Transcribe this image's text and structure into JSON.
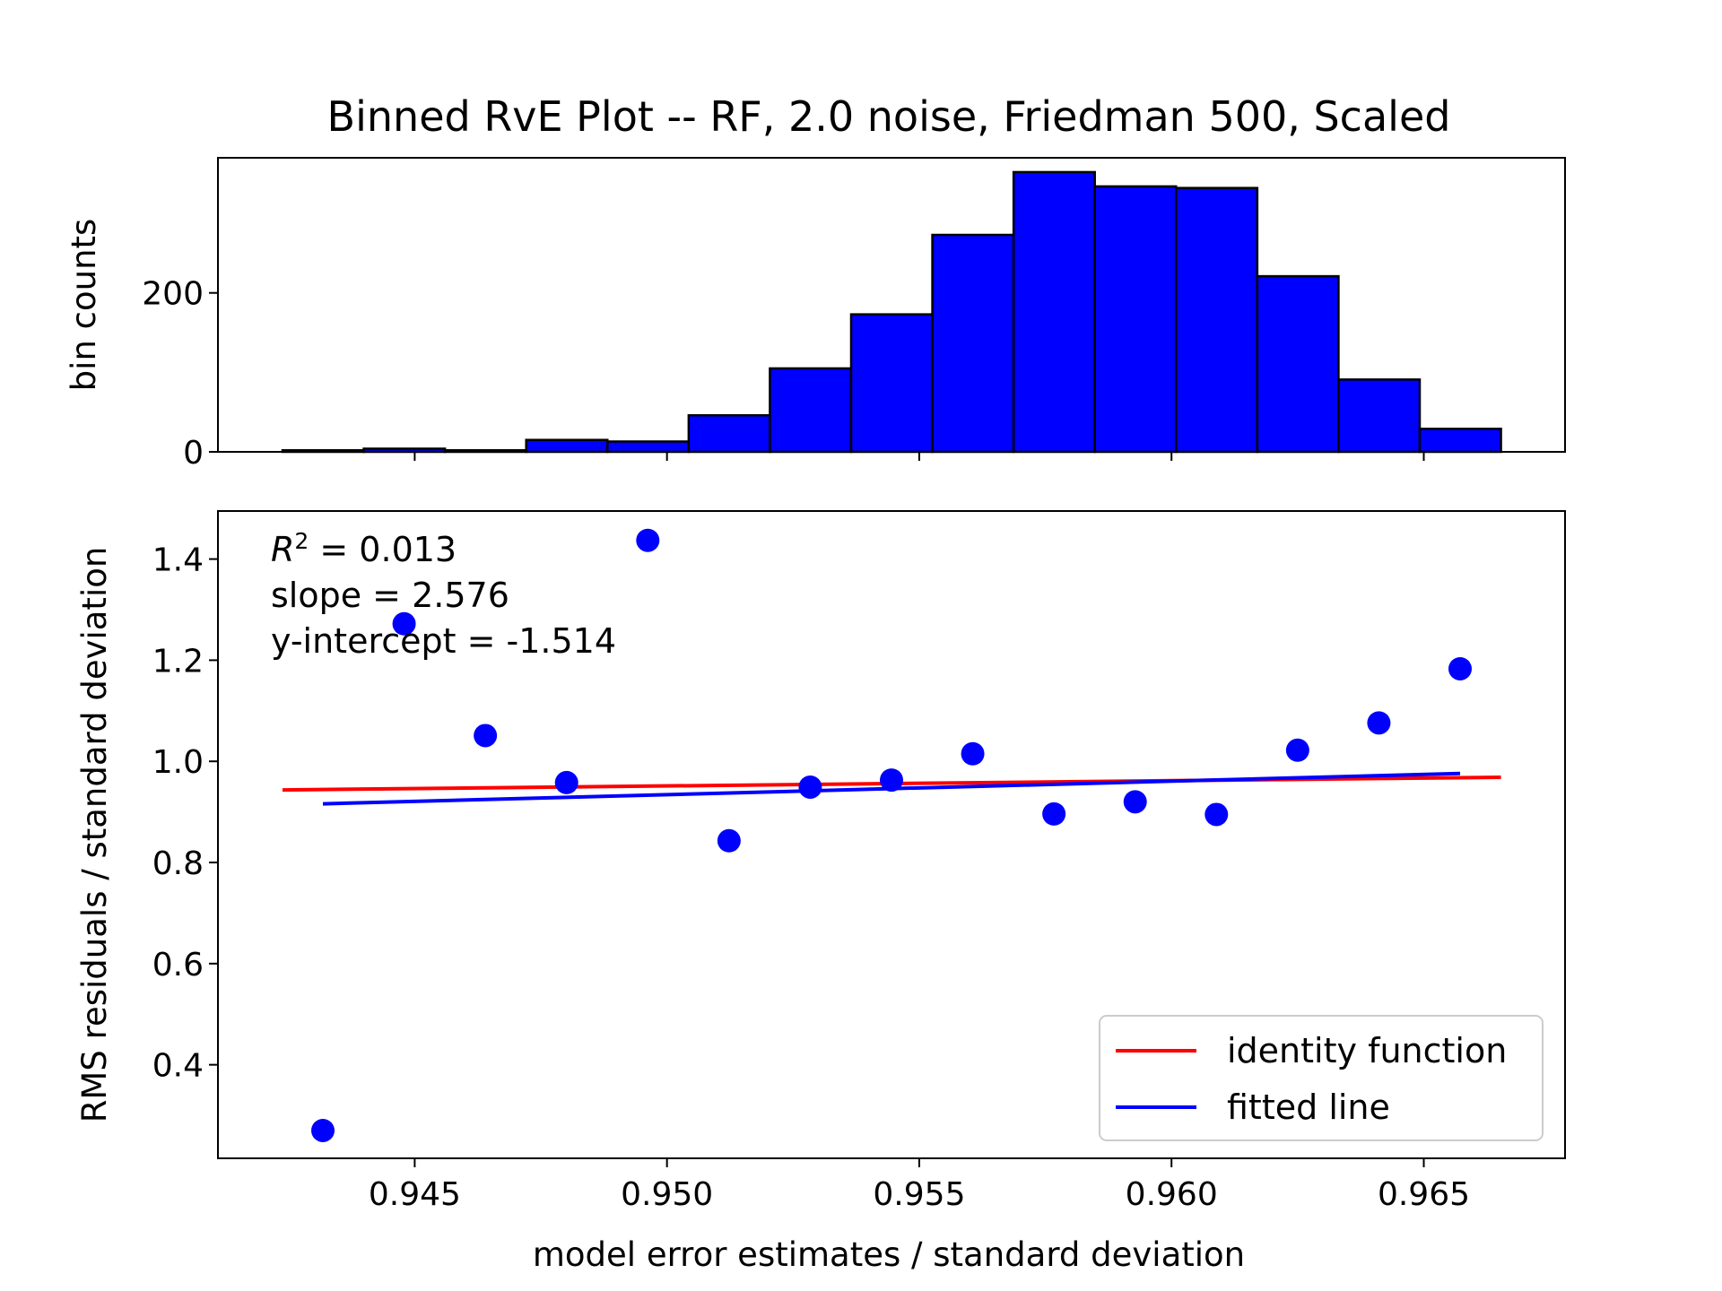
{
  "figure": {
    "title": "Binned RvE Plot -- RF, 2.0 noise, Friedman 500, Scaled"
  },
  "chart_data": [
    {
      "type": "bar",
      "panel": "top",
      "ylabel": "bin counts",
      "xlim": [
        0.9411,
        0.9678
      ],
      "ylim": [
        0,
        370
      ],
      "yticks": [
        0,
        200
      ],
      "bar_color": "#0000ff",
      "edge_color": "#000000",
      "bin_edges": [
        0.94238,
        0.94399,
        0.9456,
        0.94721,
        0.94882,
        0.95043,
        0.95204,
        0.95365,
        0.95526,
        0.95687,
        0.95848,
        0.96009,
        0.9617,
        0.96331,
        0.96492,
        0.96653
      ],
      "values": [
        2,
        4,
        2,
        15,
        13,
        46,
        105,
        173,
        273,
        352,
        334,
        332,
        221,
        91,
        29
      ]
    },
    {
      "type": "scatter",
      "panel": "bottom",
      "xlabel": "model error estimates / standard deviation",
      "ylabel": "RMS residuals / standard deviation",
      "xlim": [
        0.9411,
        0.9678
      ],
      "ylim": [
        0.215,
        1.495
      ],
      "xticks": [
        "0.945",
        "0.950",
        "0.955",
        "0.960",
        "0.965"
      ],
      "yticks": [
        "0.4",
        "0.6",
        "0.8",
        "1.0",
        "1.2",
        "1.4"
      ],
      "points": {
        "color": "#0000ff",
        "x": [
          0.94318,
          0.94479,
          0.9464,
          0.94801,
          0.94962,
          0.95123,
          0.95284,
          0.95445,
          0.95606,
          0.95767,
          0.95928,
          0.96089,
          0.9625,
          0.96411,
          0.96572
        ],
        "y": [
          0.27,
          1.272,
          1.051,
          0.958,
          1.437,
          0.843,
          0.949,
          0.963,
          1.015,
          0.896,
          0.92,
          0.895,
          1.022,
          1.076,
          1.183
        ]
      },
      "series": [
        {
          "name": "identity function",
          "color": "#ff0000",
          "x": [
            0.94238,
            0.96653
          ],
          "y": [
            0.9435,
            0.9685
          ]
        },
        {
          "name": "fitted line",
          "color": "#0000ff",
          "x": [
            0.94318,
            0.96572
          ],
          "y": [
            0.916,
            0.976
          ]
        }
      ],
      "annotations": {
        "r2_label": "R",
        "r2_sup": "2",
        "r2_value": " = 0.013",
        "slope": "slope = 2.576",
        "intercept": "y-intercept = -1.514"
      },
      "legend": {
        "position": "lower-right"
      }
    }
  ]
}
